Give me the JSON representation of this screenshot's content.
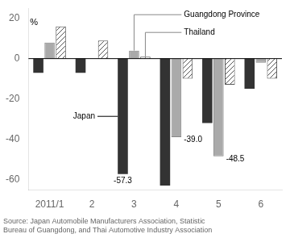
{
  "chart_data": {
    "type": "bar",
    "categories": [
      "2011/1",
      "2",
      "3",
      "4",
      "5",
      "6"
    ],
    "series": [
      {
        "name": "Japan",
        "color": "#333333",
        "values": [
          -7,
          -7,
          -57.3,
          -63,
          -32,
          -15
        ],
        "value_labels": [
          null,
          null,
          "-57.3",
          null,
          null,
          null
        ]
      },
      {
        "name": "Guangdong Province",
        "color": "#aaaaaa",
        "values": [
          8,
          0,
          4,
          -39.0,
          -48.5,
          -2
        ],
        "value_labels": [
          null,
          null,
          null,
          "-39.0",
          "-48.5",
          null
        ]
      },
      {
        "name": "Thailand",
        "color": "#ffffff",
        "values": [
          16,
          9,
          1,
          -10,
          -13,
          -10
        ]
      }
    ],
    "ylabel": "%",
    "ylim": [
      -65,
      25
    ],
    "yticks": [
      -60,
      -40,
      -20,
      0,
      20
    ],
    "grid": false,
    "source": "Source: Japan Automobile Manufacturers Association, Statistic\nBureau of Guangdong, and Thai Automotive Industry Association"
  }
}
